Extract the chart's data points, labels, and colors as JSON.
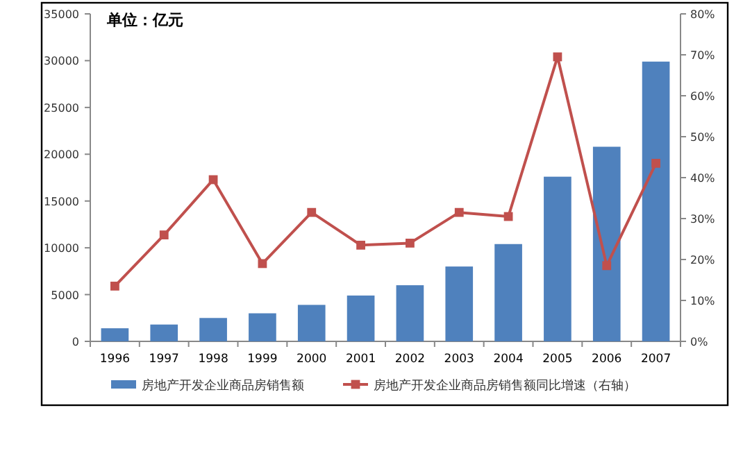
{
  "chart_data": {
    "type": "bar",
    "ylabel": "单位：亿元",
    "categories": [
      "1996",
      "1997",
      "1998",
      "1999",
      "2000",
      "2001",
      "2002",
      "2003",
      "2004",
      "2005",
      "2006",
      "2007"
    ],
    "series": [
      {
        "name": "房地产开发企业商品房销售额",
        "color": "#4f81bd",
        "values": [
          1400,
          1800,
          2500,
          3000,
          3900,
          4900,
          6000,
          8000,
          10400,
          17600,
          20800,
          29900
        ]
      },
      {
        "name": "房地产开发企业商品房销售额同比增速（右轴）",
        "type": "line",
        "axis": "y2",
        "color": "#c0504d",
        "marker": "square",
        "values": [
          13.5,
          26,
          39.5,
          19,
          31.5,
          23.5,
          24,
          31.5,
          30.5,
          69.5,
          18.5,
          43.5
        ]
      }
    ],
    "ylim": [
      0,
      35000
    ],
    "yticks": [
      0,
      5000,
      10000,
      15000,
      20000,
      25000,
      30000,
      35000
    ],
    "y2lim": [
      0,
      80
    ],
    "y2ticks": [
      {
        "value": 0,
        "label": "0%"
      },
      {
        "value": 10,
        "label": "10%"
      },
      {
        "value": 20,
        "label": "20%"
      },
      {
        "value": 30,
        "label": "30%"
      },
      {
        "value": 40,
        "label": "40%"
      },
      {
        "value": 50,
        "label": "50%"
      },
      {
        "value": 60,
        "label": "60%"
      },
      {
        "value": 70,
        "label": "70%"
      },
      {
        "value": 80,
        "label": "80%"
      }
    ],
    "legend": "bottom",
    "grid": false
  }
}
